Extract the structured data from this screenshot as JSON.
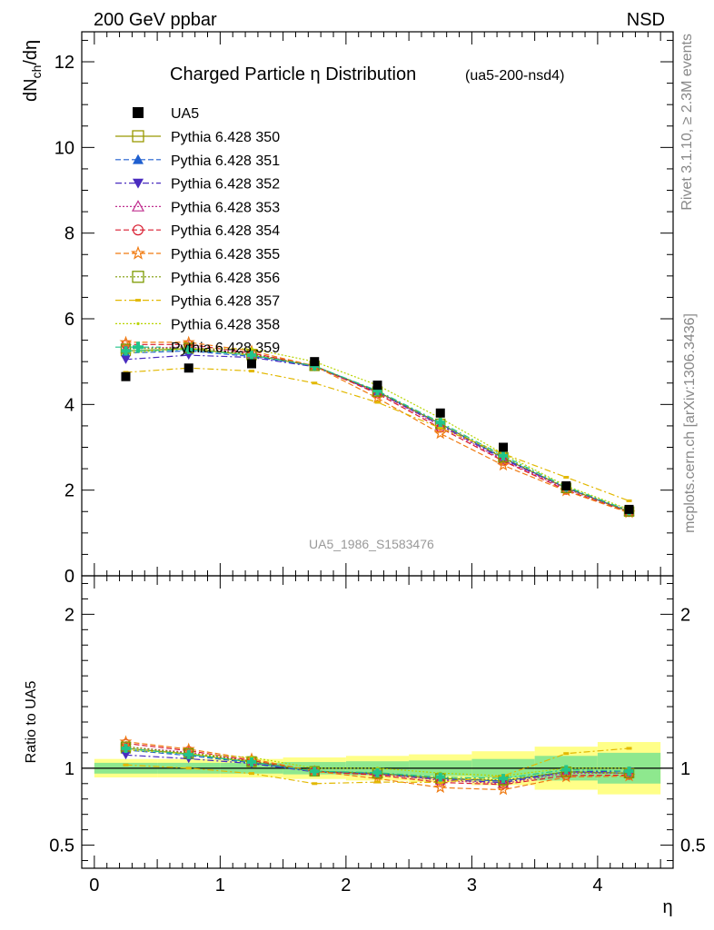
{
  "header": {
    "left": "200 GeV ppbar",
    "right": "NSD"
  },
  "side_labels": {
    "rivet": "Rivet 3.1.10, ≥ 2.3M events",
    "mcplots": "mcplots.cern.ch [arXiv:1306.3436]"
  },
  "chart_data": [
    {
      "type": "scatter",
      "title": "Charged Particle η Distribution",
      "subtitle": "(ua5-200-nsd4)",
      "ylabel": "dN_ch/dη",
      "ylabel_main": "dN",
      "ylabel_sub": "ch",
      "ylabel_tail": "/dη",
      "watermark": "UA5_1986_S1583476",
      "xlim": [
        -0.1,
        4.6
      ],
      "ylim": [
        0,
        12.7
      ],
      "yticks": [
        0,
        2,
        4,
        6,
        8,
        10,
        12
      ],
      "legend_position": "top-left",
      "x": [
        0.25,
        0.75,
        1.25,
        1.75,
        2.25,
        2.75,
        3.25,
        3.75,
        4.25
      ],
      "data": {
        "name": "UA5",
        "color": "#000000",
        "values": [
          4.65,
          4.85,
          4.95,
          5.0,
          4.45,
          3.8,
          3.0,
          2.1,
          1.55
        ]
      },
      "series": [
        {
          "name": "Pythia 6.428 350",
          "color": "#999900",
          "marker": "square-open",
          "dash": "solid",
          "values": [
            5.25,
            5.3,
            5.15,
            4.9,
            4.3,
            3.55,
            2.75,
            2.05,
            1.5
          ]
        },
        {
          "name": "Pythia 6.428 351",
          "color": "#1f5fcf",
          "marker": "triangle-up",
          "dash": "dashed",
          "values": [
            5.2,
            5.25,
            5.12,
            4.9,
            4.3,
            3.55,
            2.75,
            2.05,
            1.5
          ]
        },
        {
          "name": "Pythia 6.428 352",
          "color": "#4a2cbf",
          "marker": "triangle-down",
          "dash": "dashdot",
          "values": [
            5.05,
            5.15,
            5.1,
            4.88,
            4.28,
            3.52,
            2.72,
            2.05,
            1.52
          ]
        },
        {
          "name": "Pythia 6.428 353",
          "color": "#c0308f",
          "marker": "triangle-open",
          "dash": "dotted",
          "values": [
            5.3,
            5.35,
            5.18,
            4.9,
            4.28,
            3.5,
            2.7,
            2.03,
            1.5
          ]
        },
        {
          "name": "Pythia 6.428 354",
          "color": "#d81b2e",
          "marker": "circle-open",
          "dash": "dashed",
          "values": [
            5.4,
            5.4,
            5.2,
            4.9,
            4.25,
            3.45,
            2.68,
            2.0,
            1.48
          ]
        },
        {
          "name": "Pythia 6.428 355",
          "color": "#f07b12",
          "marker": "star-open",
          "dash": "dashed",
          "values": [
            5.45,
            5.45,
            5.25,
            4.9,
            4.15,
            3.32,
            2.58,
            1.98,
            1.47
          ]
        },
        {
          "name": "Pythia 6.428 356",
          "color": "#7d9a00",
          "marker": "square-open",
          "dash": "dotted",
          "values": [
            5.3,
            5.32,
            5.17,
            4.9,
            4.3,
            3.55,
            2.77,
            2.05,
            1.5
          ]
        },
        {
          "name": "Pythia 6.428 357",
          "color": "#e2b800",
          "marker": "dash",
          "dash": "dashdot",
          "values": [
            4.75,
            4.85,
            4.78,
            4.5,
            4.05,
            3.45,
            2.85,
            2.3,
            1.75
          ]
        },
        {
          "name": "Pythia 6.428 358",
          "color": "#b8d400",
          "marker": "dot",
          "dash": "dotted",
          "values": [
            5.2,
            5.3,
            5.3,
            5.0,
            4.45,
            3.68,
            2.85,
            2.1,
            1.55
          ]
        },
        {
          "name": "Pythia 6.428 359",
          "color": "#22c48a",
          "marker": "cross",
          "dash": "dashdot",
          "values": [
            5.25,
            5.28,
            5.15,
            4.9,
            4.32,
            3.58,
            2.8,
            2.08,
            1.52
          ]
        }
      ]
    },
    {
      "type": "scatter",
      "ylabel": "Ratio to UA5",
      "xlabel": "η",
      "xlim": [
        -0.1,
        4.6
      ],
      "ylim": [
        0.35,
        2.25
      ],
      "yticks": [
        0.5,
        1,
        2
      ],
      "xticks": [
        0,
        1,
        2,
        3,
        4
      ],
      "x": [
        0.25,
        0.75,
        1.25,
        1.75,
        2.25,
        2.75,
        3.25,
        3.75,
        4.25
      ],
      "band_inner": [
        0.035,
        0.035,
        0.035,
        0.04,
        0.045,
        0.05,
        0.06,
        0.08,
        0.1
      ],
      "band_outer": [
        0.06,
        0.06,
        0.06,
        0.07,
        0.08,
        0.09,
        0.11,
        0.14,
        0.17
      ],
      "band_inner_color": "#8ee88e",
      "band_outer_color": "#ffff88"
    }
  ]
}
